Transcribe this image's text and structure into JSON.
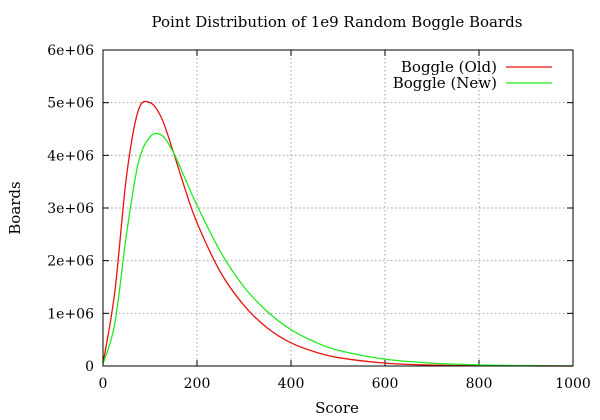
{
  "chart_data": {
    "type": "line",
    "title": "Point Distribution of 1e9 Random Boggle Boards",
    "xlabel": "Score",
    "ylabel": "Boards",
    "xlim": [
      0,
      1000
    ],
    "ylim": [
      0,
      6000000
    ],
    "x_ticks": [
      "0",
      "200",
      "400",
      "600",
      "800",
      "1000"
    ],
    "x_tick_values": [
      0,
      200,
      400,
      600,
      800,
      1000
    ],
    "y_ticks": [
      "0",
      "1e+06",
      "2e+06",
      "3e+06",
      "4e+06",
      "5e+06",
      "6e+06"
    ],
    "y_tick_values": [
      0,
      1000000,
      2000000,
      3000000,
      4000000,
      5000000,
      6000000
    ],
    "grid": true,
    "legend_position": "top-right",
    "x": [
      0,
      25,
      50,
      75,
      100,
      125,
      150,
      175,
      200,
      250,
      300,
      350,
      400,
      450,
      500,
      600,
      700,
      800,
      900,
      1000
    ],
    "series": [
      {
        "name": "Boggle (Old)",
        "color": "#e8130f",
        "values": [
          50000,
          1400000,
          3600000,
          4850000,
          5000000,
          4700000,
          4050000,
          3350000,
          2720000,
          1780000,
          1150000,
          720000,
          440000,
          270000,
          160000,
          55000,
          18000,
          6000,
          2000,
          500
        ]
      },
      {
        "name": "Boggle (New)",
        "color": "#22ea22",
        "values": [
          40000,
          800000,
          2500000,
          3850000,
          4350000,
          4380000,
          4050000,
          3550000,
          3050000,
          2170000,
          1500000,
          1030000,
          690000,
          460000,
          300000,
          130000,
          55000,
          22000,
          8000,
          3000
        ]
      }
    ]
  }
}
